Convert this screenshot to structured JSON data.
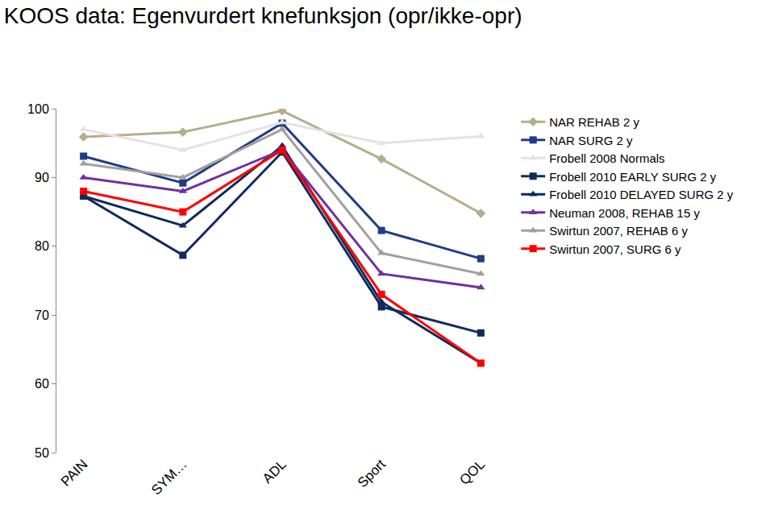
{
  "chart_data": {
    "type": "line",
    "title": "KOOS data: Egenvurdert knefunksjon (opr/ikke-opr)",
    "categories": [
      "PAIN",
      "SYM…",
      "ADL",
      "Sport",
      "QOL"
    ],
    "ylim": [
      50,
      100
    ],
    "yticks": [
      50,
      60,
      70,
      80,
      90,
      100
    ],
    "grid": false,
    "legend": "right",
    "series": [
      {
        "name": "NAR REHAB 2 y",
        "color": "#B5AE8C",
        "marker": "diamond",
        "values": [
          95.9,
          96.6,
          99.7,
          92.7,
          84.8
        ]
      },
      {
        "name": "NAR SURG 2 y",
        "color": "#1F3C88",
        "marker": "square",
        "values": [
          93.1,
          89.2,
          97.9,
          82.3,
          78.2
        ]
      },
      {
        "name": "Frobell 2008 Normals",
        "color": "#E3E3E3",
        "marker": "triangle",
        "values": [
          97,
          94,
          98,
          95,
          96
        ]
      },
      {
        "name": "Frobell 2010 EARLY SURG 2 y",
        "color": "#102B5E",
        "marker": "square",
        "values": [
          87.3,
          78.7,
          93.7,
          71.2,
          67.4
        ]
      },
      {
        "name": "Frobell 2010 DELAYED SURG 2 y",
        "color": "#0E2A5C",
        "marker": "triangle",
        "values": [
          87.3,
          83.0,
          94.6,
          71.9,
          63.0
        ]
      },
      {
        "name": "Neuman 2008, REHAB 15 y",
        "color": "#7030A0",
        "marker": "triangle",
        "values": [
          90,
          88,
          94,
          76,
          74
        ]
      },
      {
        "name": "Swirtun 2007, REHAB 6 y",
        "color": "#A0A0A0",
        "marker": "triangle",
        "values": [
          92,
          90,
          97,
          79,
          76
        ]
      },
      {
        "name": "Swirtun 2007, SURG 6 y",
        "color": "#FF0000",
        "marker": "square",
        "values": [
          88,
          85,
          94,
          73,
          63
        ]
      }
    ]
  }
}
